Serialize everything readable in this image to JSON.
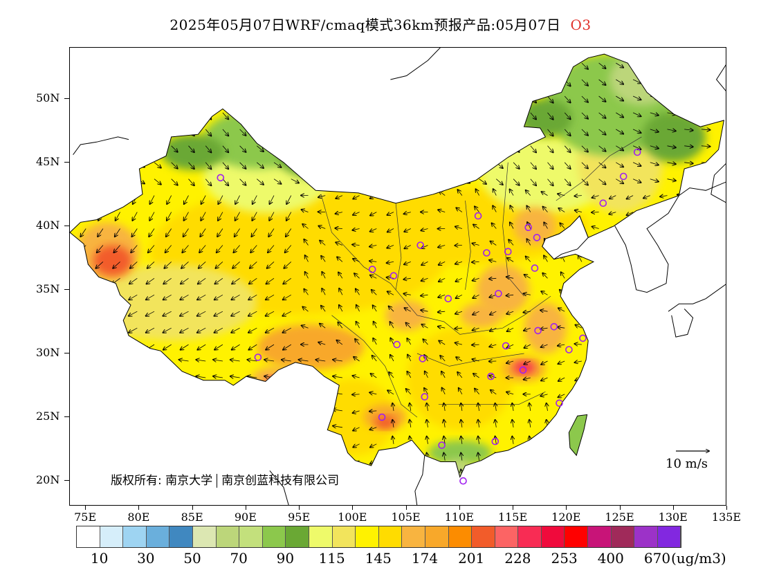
{
  "title": {
    "text": "2025年05月07日WRF/cmaq模式36km预报产品:05月07日",
    "species": "O3"
  },
  "axes": {
    "lat_labels": [
      "50N",
      "45N",
      "40N",
      "35N",
      "30N",
      "25N",
      "20N"
    ],
    "lat_values": [
      50,
      45,
      40,
      35,
      30,
      25,
      20
    ],
    "lon_labels": [
      "75E",
      "80E",
      "85E",
      "90E",
      "95E",
      "100E",
      "105E",
      "110E",
      "115E",
      "120E",
      "125E",
      "130E",
      "135E"
    ],
    "lon_values": [
      75,
      80,
      85,
      90,
      95,
      100,
      105,
      110,
      115,
      120,
      125,
      130,
      135
    ],
    "lon_range": [
      73.5,
      135
    ],
    "lat_range": [
      18,
      54
    ]
  },
  "legend": {
    "colors": [
      "#ffffff",
      "#d6eefa",
      "#9ed4f2",
      "#6aafdc",
      "#4088c0",
      "#dce7b2",
      "#bcd67a",
      "#c3e07c",
      "#8cc84c",
      "#6aa834",
      "#eefa6a",
      "#f2e45c",
      "#fff200",
      "#ffdc00",
      "#f8b440",
      "#f8a82a",
      "#fc8c00",
      "#f25c2a",
      "#fc6464",
      "#f82c54",
      "#f00a3c",
      "#ff0000",
      "#c81478",
      "#a02a5a",
      "#9c32c8",
      "#8228e0"
    ],
    "labels": [
      "10",
      "30",
      "50",
      "70",
      "90",
      "115",
      "145",
      "174",
      "201",
      "228",
      "253",
      "400",
      "670"
    ],
    "unit": "(ug/m3)"
  },
  "wind_reference": {
    "label": "10 m/s"
  },
  "copyright": {
    "prefix": "版权所有: 南京大学",
    "suffix": "南京创蓝科技有限公司"
  },
  "stations": [
    [
      87.6,
      43.8
    ],
    [
      91.1,
      29.7
    ],
    [
      101.8,
      36.6
    ],
    [
      103.8,
      36.1
    ],
    [
      106.3,
      38.5
    ],
    [
      111.7,
      40.8
    ],
    [
      112.5,
      37.9
    ],
    [
      114.5,
      38.0
    ],
    [
      116.4,
      39.9
    ],
    [
      117.2,
      39.1
    ],
    [
      117.0,
      36.7
    ],
    [
      113.6,
      34.7
    ],
    [
      108.9,
      34.3
    ],
    [
      104.1,
      30.7
    ],
    [
      106.5,
      29.6
    ],
    [
      102.7,
      25.0
    ],
    [
      106.7,
      26.6
    ],
    [
      108.3,
      22.8
    ],
    [
      110.3,
      20.0
    ],
    [
      113.3,
      23.1
    ],
    [
      112.9,
      28.2
    ],
    [
      114.3,
      30.6
    ],
    [
      115.9,
      28.7
    ],
    [
      117.3,
      31.8
    ],
    [
      118.8,
      32.1
    ],
    [
      120.2,
      30.3
    ],
    [
      121.5,
      31.2
    ],
    [
      119.3,
      26.1
    ],
    [
      123.4,
      41.8
    ],
    [
      125.3,
      43.9
    ],
    [
      126.6,
      45.8
    ]
  ]
}
